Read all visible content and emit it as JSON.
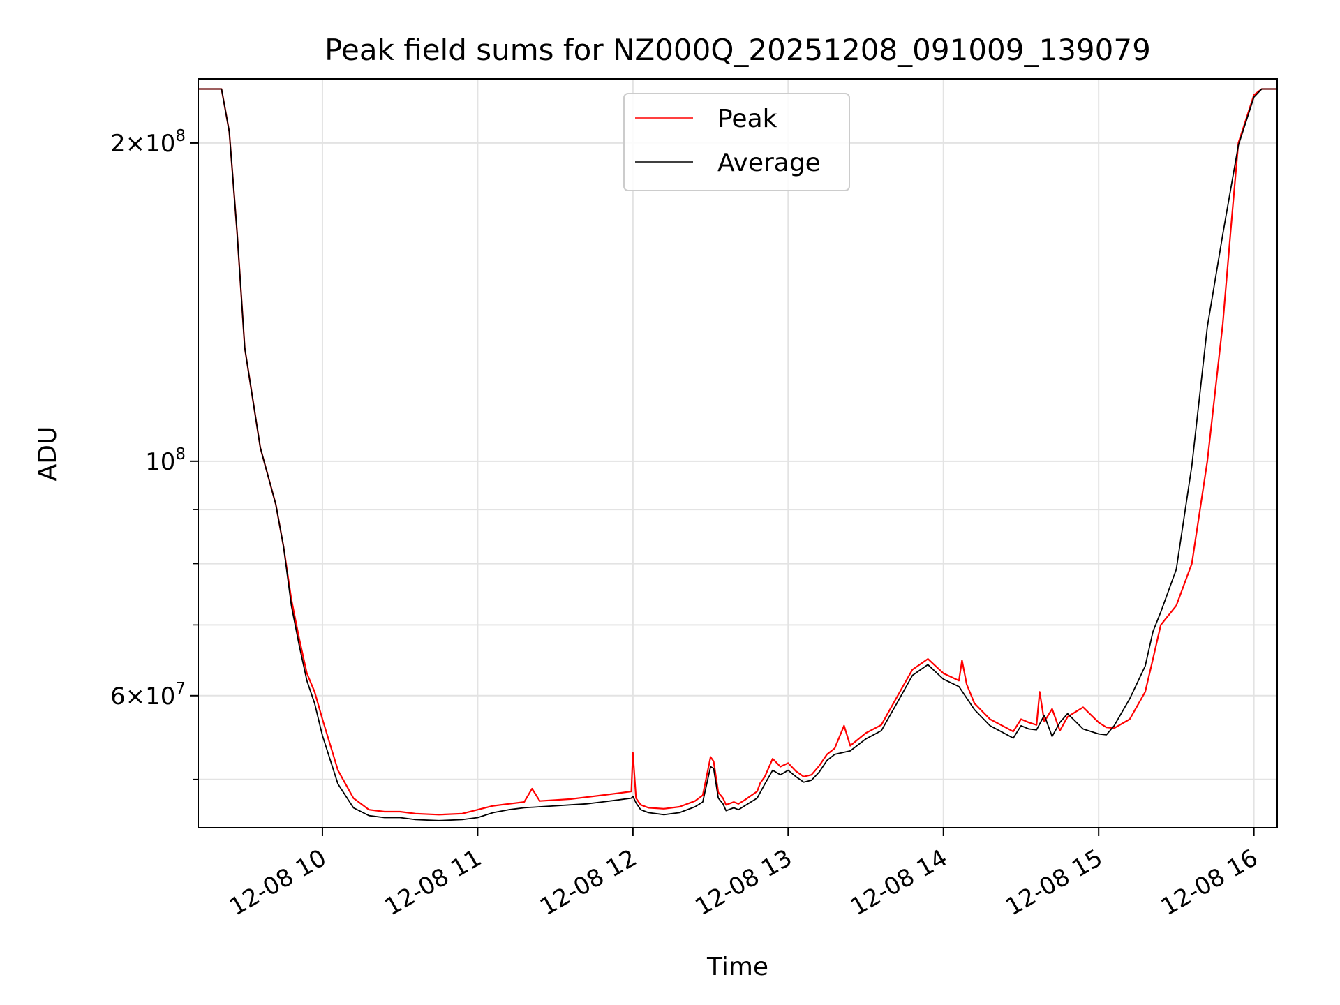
{
  "chart_data": {
    "type": "line",
    "title": "Peak field sums for NZ000Q_20251208_091009_139079",
    "xlabel": "Time",
    "ylabel": "ADU",
    "yscale": "log",
    "grid": true,
    "legend_position": "top-center",
    "x_unit": "hours since 2025-12-08 00:00",
    "xlim": [
      9.2,
      16.15
    ],
    "ylim": [
      45000000,
      230000000
    ],
    "x_ticks": [
      {
        "value": 10,
        "label": "12-08 10"
      },
      {
        "value": 11,
        "label": "12-08 11"
      },
      {
        "value": 12,
        "label": "12-08 12"
      },
      {
        "value": 13,
        "label": "12-08 13"
      },
      {
        "value": 14,
        "label": "12-08 14"
      },
      {
        "value": 15,
        "label": "12-08 15"
      },
      {
        "value": 16,
        "label": "12-08 16"
      }
    ],
    "y_major_ticks": [
      {
        "value": 60000000,
        "mantissa": "6",
        "exponent": "7"
      },
      {
        "value": 100000000,
        "mantissa": "",
        "exponent": "8"
      },
      {
        "value": 200000000,
        "mantissa": "2",
        "exponent": "8"
      }
    ],
    "y_minor_ticks": [
      50000000,
      70000000,
      80000000,
      90000000
    ],
    "series": [
      {
        "name": "Peak",
        "color": "#ff0000",
        "x": [
          9.2,
          9.35,
          9.4,
          9.45,
          9.5,
          9.6,
          9.7,
          9.75,
          9.8,
          9.85,
          9.9,
          9.95,
          10.0,
          10.1,
          10.2,
          10.3,
          10.4,
          10.5,
          10.6,
          10.75,
          10.9,
          11.0,
          11.1,
          11.2,
          11.3,
          11.35,
          11.4,
          11.5,
          11.6,
          11.7,
          11.8,
          11.9,
          11.99,
          12.0,
          12.02,
          12.05,
          12.1,
          12.2,
          12.3,
          12.4,
          12.45,
          12.5,
          12.52,
          12.55,
          12.58,
          12.6,
          12.65,
          12.68,
          12.72,
          12.8,
          12.82,
          12.85,
          12.9,
          12.95,
          13.0,
          13.05,
          13.1,
          13.15,
          13.2,
          13.25,
          13.3,
          13.36,
          13.4,
          13.5,
          13.6,
          13.7,
          13.8,
          13.9,
          14.0,
          14.1,
          14.12,
          14.15,
          14.2,
          14.3,
          14.4,
          14.45,
          14.5,
          14.55,
          14.6,
          14.62,
          14.65,
          14.7,
          14.75,
          14.8,
          14.9,
          15.0,
          15.05,
          15.1,
          15.2,
          15.3,
          15.35,
          15.4,
          15.5,
          15.6,
          15.7,
          15.8,
          15.85,
          15.9,
          16.0,
          16.05,
          16.15
        ],
        "values": [
          225000000,
          225000000,
          205000000,
          165000000,
          128000000,
          103000000,
          91000000,
          83000000,
          74000000,
          68000000,
          63000000,
          60500000,
          57000000,
          51000000,
          48000000,
          46800000,
          46600000,
          46600000,
          46400000,
          46300000,
          46400000,
          46800000,
          47200000,
          47400000,
          47600000,
          49000000,
          47700000,
          47800000,
          47900000,
          48100000,
          48300000,
          48500000,
          48700000,
          53000000,
          48000000,
          47300000,
          47000000,
          46900000,
          47100000,
          47700000,
          48300000,
          52500000,
          52000000,
          48600000,
          48000000,
          47300000,
          47600000,
          47400000,
          47800000,
          48700000,
          49600000,
          50300000,
          52300000,
          51400000,
          51800000,
          50900000,
          50300000,
          50500000,
          51500000,
          52800000,
          53500000,
          56200000,
          53800000,
          55300000,
          56300000,
          59800000,
          63500000,
          65000000,
          63000000,
          62000000,
          64800000,
          61500000,
          59000000,
          57000000,
          56000000,
          55500000,
          57000000,
          56600000,
          56300000,
          60500000,
          56700000,
          58300000,
          55600000,
          57300000,
          58500000,
          56600000,
          56000000,
          55900000,
          57000000,
          60500000,
          65000000,
          70000000,
          73000000,
          80000000,
          100000000,
          135000000,
          165000000,
          200000000,
          222000000,
          225000000,
          225000000
        ]
      },
      {
        "name": "Average",
        "color": "#000000",
        "x": [
          9.2,
          9.35,
          9.4,
          9.45,
          9.5,
          9.6,
          9.7,
          9.75,
          9.8,
          9.85,
          9.9,
          9.95,
          10.0,
          10.1,
          10.2,
          10.3,
          10.4,
          10.5,
          10.6,
          10.75,
          10.9,
          11.0,
          11.1,
          11.2,
          11.3,
          11.4,
          11.5,
          11.6,
          11.7,
          11.8,
          11.9,
          11.99,
          12.0,
          12.02,
          12.05,
          12.1,
          12.2,
          12.3,
          12.4,
          12.45,
          12.5,
          12.52,
          12.55,
          12.58,
          12.6,
          12.65,
          12.68,
          12.72,
          12.8,
          12.85,
          12.9,
          12.95,
          13.0,
          13.05,
          13.1,
          13.15,
          13.2,
          13.25,
          13.3,
          13.4,
          13.5,
          13.6,
          13.7,
          13.8,
          13.9,
          14.0,
          14.1,
          14.2,
          14.3,
          14.4,
          14.45,
          14.5,
          14.55,
          14.6,
          14.65,
          14.7,
          14.75,
          14.8,
          14.9,
          15.0,
          15.05,
          15.1,
          15.2,
          15.3,
          15.35,
          15.4,
          15.5,
          15.6,
          15.7,
          15.8,
          15.9,
          16.0,
          16.05,
          16.15
        ],
        "values": [
          225000000,
          225000000,
          205000000,
          165000000,
          128000000,
          103000000,
          91000000,
          83000000,
          73000000,
          67000000,
          62000000,
          59000000,
          55000000,
          49500000,
          47000000,
          46200000,
          46000000,
          46000000,
          45800000,
          45700000,
          45800000,
          46000000,
          46500000,
          46800000,
          47000000,
          47100000,
          47200000,
          47300000,
          47400000,
          47600000,
          47800000,
          48000000,
          48200000,
          47500000,
          46800000,
          46500000,
          46300000,
          46500000,
          47100000,
          47600000,
          51400000,
          51200000,
          48000000,
          47400000,
          46700000,
          47000000,
          46800000,
          47200000,
          48000000,
          49500000,
          51000000,
          50500000,
          51000000,
          50300000,
          49700000,
          49900000,
          50800000,
          52100000,
          52800000,
          53200000,
          54600000,
          55600000,
          59000000,
          62700000,
          64200000,
          62200000,
          61200000,
          58200000,
          56200000,
          55200000,
          54700000,
          56200000,
          55800000,
          55700000,
          57500000,
          54900000,
          56600000,
          57700000,
          55800000,
          55200000,
          55100000,
          56200000,
          59600000,
          64000000,
          69000000,
          72000000,
          79000000,
          99000000,
          134000000,
          164000000,
          199000000,
          221000000,
          225000000,
          225000000
        ]
      }
    ]
  }
}
